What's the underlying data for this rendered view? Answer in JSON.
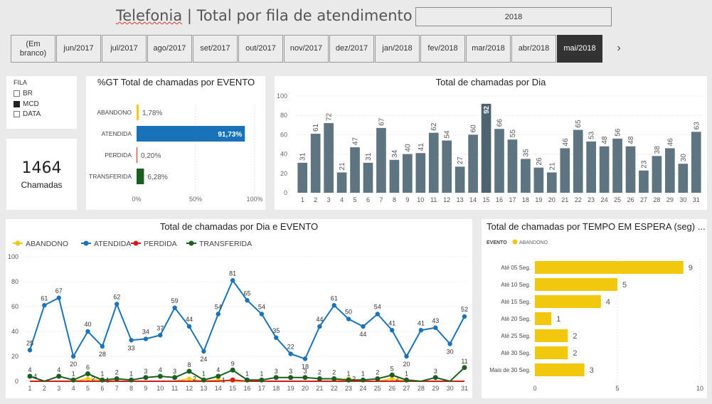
{
  "header": {
    "title_part1": "Telefonia",
    "title_sep": " | ",
    "title_part2": "Total por fila de atendimento",
    "year_filter": "2018"
  },
  "months": [
    "(Em\nbranco)",
    "jun/2017",
    "jul/2017",
    "ago/2017",
    "set/2017",
    "out/2017",
    "nov/2017",
    "dez/2017",
    "jan/2018",
    "fev/2018",
    "mar/2018",
    "abr/2018",
    "mai/2018"
  ],
  "selected_month": "mai/2018",
  "fila": {
    "title": "FILA",
    "items": [
      {
        "label": "BR",
        "checked": false
      },
      {
        "label": "MCD",
        "checked": true
      },
      {
        "label": "DATA",
        "checked": false
      }
    ]
  },
  "card": {
    "value": "1464",
    "label": "Chamadas"
  },
  "colors": {
    "abandono": "#f2c80f",
    "atendida": "#1a73b8",
    "perdida": "#d51a1a",
    "transferida": "#1b5e20",
    "daybar": "#5f7481",
    "daybar_highlight": "#4e6370"
  },
  "gt_chart": {
    "title": "%GT Total de chamadas por EVENTO",
    "categories": [
      "ABANDONO",
      "ATENDIDA",
      "PERDIDA",
      "TRANSFERIDA"
    ],
    "values": [
      1.78,
      91.73,
      0.2,
      6.28
    ],
    "labels": [
      "1,78%",
      "91,73%",
      "0,20%",
      "6,28%"
    ],
    "ticks": [
      "0%",
      "50%",
      "100%"
    ]
  },
  "day_chart": {
    "title": "Total de chamadas por Dia",
    "y_ticks": [
      "0",
      "20",
      "40",
      "60",
      "80",
      "100"
    ],
    "days": [
      "1",
      "2",
      "3",
      "4",
      "5",
      "6",
      "7",
      "8",
      "9",
      "10",
      "11",
      "12",
      "13",
      "14",
      "15",
      "16",
      "17",
      "18",
      "19",
      "20",
      "21",
      "22",
      "23",
      "24",
      "25",
      "26",
      "27",
      "28",
      "29",
      "30",
      "31"
    ],
    "values": [
      31,
      61,
      72,
      21,
      47,
      31,
      67,
      34,
      40,
      41,
      62,
      54,
      27,
      60,
      92,
      66,
      55,
      35,
      26,
      21,
      46,
      65,
      53,
      48,
      56,
      48,
      23,
      38,
      46,
      30,
      63
    ]
  },
  "event_chart": {
    "title": "Total de chamadas por Dia e EVENTO",
    "legend": [
      "ABANDONO",
      "ATENDIDA",
      "PERDIDA",
      "TRANSFERIDA"
    ],
    "y_ticks": [
      "0",
      "20",
      "40",
      "60",
      "80",
      "100"
    ],
    "days": [
      "1",
      "2",
      "3",
      "4",
      "5",
      "6",
      "7",
      "8",
      "9",
      "10",
      "11",
      "12",
      "13",
      "14",
      "15",
      "16",
      "17",
      "18",
      "19",
      "20",
      "21",
      "22",
      "23",
      "24",
      "25",
      "26",
      "27",
      "28",
      "29",
      "30",
      "31"
    ],
    "atendida": [
      25,
      61,
      67,
      20,
      40,
      28,
      62,
      33,
      34,
      37,
      59,
      44,
      24,
      54,
      81,
      65,
      54,
      35,
      22,
      18,
      44,
      61,
      50,
      44,
      54,
      41,
      20,
      41,
      43,
      30,
      52
    ],
    "transferida": [
      4,
      0,
      4,
      1,
      6,
      1,
      2,
      1,
      3,
      4,
      3,
      8,
      1,
      4,
      9,
      1,
      1,
      3,
      3,
      3,
      2,
      2,
      1,
      1,
      2,
      5,
      1,
      0,
      3,
      0,
      11
    ],
    "abandono": [
      4,
      0,
      0,
      0,
      2,
      1,
      0,
      0,
      0,
      0,
      0,
      2,
      0,
      1,
      0,
      0,
      0,
      0,
      0,
      0,
      0,
      0,
      2,
      0,
      0,
      2,
      0,
      0,
      0,
      0,
      0
    ],
    "perdida": [
      0,
      0,
      0,
      0,
      0,
      0,
      0,
      0,
      0,
      0,
      0,
      0,
      0,
      0,
      1,
      0,
      0,
      0,
      0,
      0,
      0,
      0,
      0,
      0,
      0,
      0,
      0,
      0,
      0,
      0,
      0
    ]
  },
  "wait_chart": {
    "title": "Total de chamadas por TEMPO EM ESPERA (seg) ...",
    "legend_title": "EVENTO",
    "legend_item": "ABANDONO",
    "categories": [
      "Até 05 Seg.",
      "Até 10 Seg.",
      "Até 15 Seg.",
      "Até 20 Seg.",
      "Até 25 Seg.",
      "Até 30 Seg.",
      "Mais de 30 Seg."
    ],
    "values": [
      9,
      5,
      4,
      1,
      2,
      2,
      3
    ],
    "x_ticks": [
      "0",
      "5",
      "10"
    ]
  },
  "chart_data": [
    {
      "type": "bar",
      "title": "%GT Total de chamadas por EVENTO",
      "categories": [
        "ABANDONO",
        "ATENDIDA",
        "PERDIDA",
        "TRANSFERIDA"
      ],
      "values": [
        1.78,
        91.73,
        0.2,
        6.28
      ],
      "xlim": [
        0,
        100
      ]
    },
    {
      "type": "bar",
      "title": "Total de chamadas por Dia",
      "categories": [
        "1",
        "2",
        "3",
        "4",
        "5",
        "6",
        "7",
        "8",
        "9",
        "10",
        "11",
        "12",
        "13",
        "14",
        "15",
        "16",
        "17",
        "18",
        "19",
        "20",
        "21",
        "22",
        "23",
        "24",
        "25",
        "26",
        "27",
        "28",
        "29",
        "30",
        "31"
      ],
      "values": [
        31,
        61,
        72,
        21,
        47,
        31,
        67,
        34,
        40,
        41,
        62,
        54,
        27,
        60,
        92,
        66,
        55,
        35,
        26,
        21,
        46,
        65,
        53,
        48,
        56,
        48,
        23,
        38,
        46,
        30,
        63
      ],
      "ylim": [
        0,
        100
      ]
    },
    {
      "type": "line",
      "title": "Total de chamadas por Dia e EVENTO",
      "series": [
        {
          "name": "ATENDIDA",
          "values": [
            25,
            61,
            67,
            20,
            40,
            28,
            62,
            33,
            34,
            37,
            59,
            44,
            24,
            54,
            81,
            65,
            54,
            35,
            22,
            18,
            44,
            61,
            50,
            44,
            54,
            41,
            20,
            41,
            43,
            30,
            52
          ]
        },
        {
          "name": "TRANSFERIDA",
          "values": [
            4,
            0,
            4,
            1,
            6,
            1,
            2,
            1,
            3,
            4,
            3,
            8,
            1,
            4,
            9,
            1,
            1,
            3,
            3,
            3,
            2,
            2,
            1,
            1,
            2,
            5,
            1,
            0,
            3,
            0,
            11
          ]
        },
        {
          "name": "ABANDONO",
          "values": [
            4,
            0,
            0,
            0,
            2,
            1,
            0,
            0,
            0,
            0,
            0,
            2,
            0,
            1,
            0,
            0,
            0,
            0,
            0,
            0,
            0,
            0,
            2,
            0,
            0,
            2,
            0,
            0,
            0,
            0,
            0
          ]
        },
        {
          "name": "PERDIDA",
          "values": [
            0,
            0,
            0,
            0,
            0,
            0,
            0,
            0,
            0,
            0,
            0,
            0,
            0,
            0,
            1,
            0,
            0,
            0,
            0,
            0,
            0,
            0,
            0,
            0,
            0,
            0,
            0,
            0,
            0,
            0,
            0
          ]
        }
      ],
      "ylim": [
        0,
        100
      ]
    },
    {
      "type": "bar",
      "title": "Total de chamadas por TEMPO EM ESPERA (seg) ...",
      "categories": [
        "Até 05 Seg.",
        "Até 10 Seg.",
        "Até 15 Seg.",
        "Até 20 Seg.",
        "Até 25 Seg.",
        "Até 30 Seg.",
        "Mais de 30 Seg."
      ],
      "values": [
        9,
        5,
        4,
        1,
        2,
        2,
        3
      ],
      "xlim": [
        0,
        10
      ]
    }
  ]
}
